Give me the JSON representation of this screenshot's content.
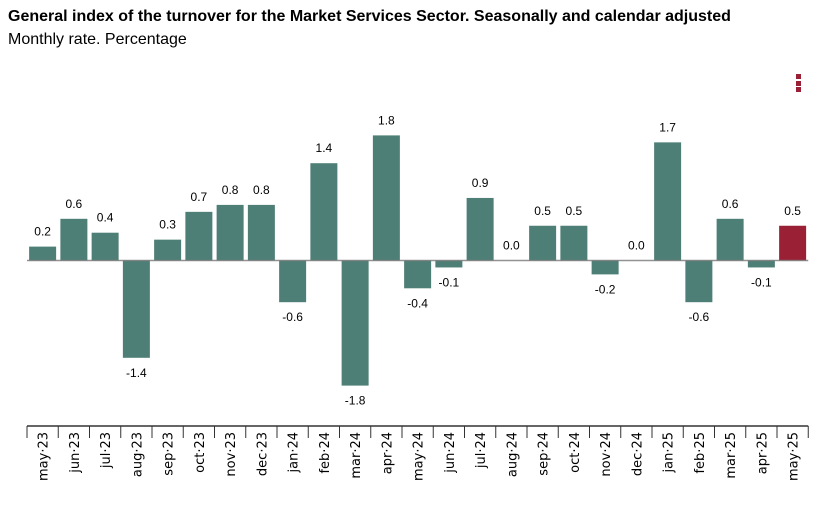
{
  "chart_data": {
    "type": "bar",
    "title": "General index of the turnover for the Market Services Sector. Seasonally and calendar adjusted",
    "subtitle": "Monthly rate. Percentage",
    "xlabel": "",
    "ylabel": "",
    "categories": [
      "may·23",
      "jun·23",
      "jul·23",
      "aug·23",
      "sep·23",
      "oct·23",
      "nov·23",
      "dec·23",
      "jan·24",
      "feb·24",
      "mar·24",
      "apr·24",
      "may·24",
      "jun·24",
      "jul·24",
      "aug·24",
      "sep·24",
      "oct·24",
      "nov·24",
      "dec·24",
      "jan·25",
      "feb·25",
      "mar·25",
      "apr·25",
      "may·25"
    ],
    "values": [
      0.2,
      0.6,
      0.4,
      -1.4,
      0.3,
      0.7,
      0.8,
      0.8,
      -0.6,
      1.4,
      -1.8,
      1.8,
      -0.4,
      -0.1,
      0.9,
      0.0,
      0.5,
      0.5,
      -0.2,
      0.0,
      1.7,
      -0.6,
      0.6,
      -0.1,
      0.5
    ],
    "ylim": [
      -1.8,
      1.8
    ],
    "grid": false,
    "colors": {
      "default": "#4e7f76",
      "highlight": "#9a2036",
      "axis": "#333333"
    },
    "highlight_index": 24
  },
  "menu_icon": "kebab-menu-icon"
}
